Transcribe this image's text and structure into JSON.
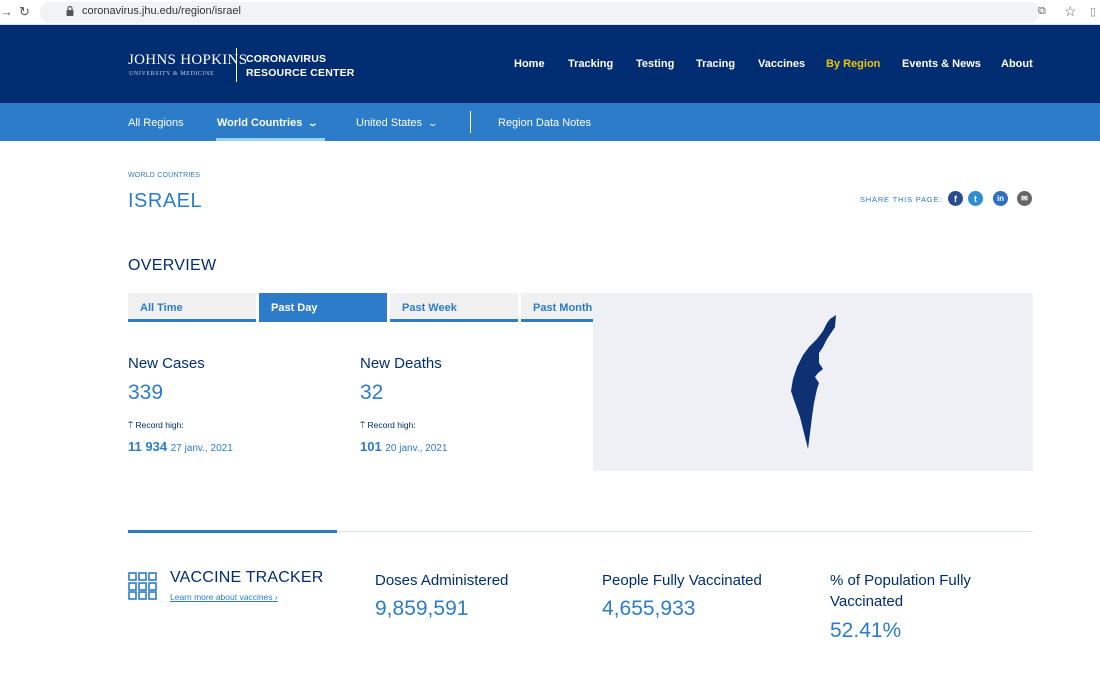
{
  "browser": {
    "url": "coronavirus.jhu.edu/region/israel",
    "icons": [
      "back-arrow-icon",
      "reload-icon",
      "lock-icon",
      "translate-icon",
      "star-icon"
    ]
  },
  "header": {
    "logo_main": "JOHNS HOPKINS",
    "logo_sub": "UNIVERSITY & MEDICINE",
    "logo_crc_line1": "CORONAVIRUS",
    "logo_crc_line2": "RESOURCE CENTER",
    "nav": [
      "Home",
      "Tracking",
      "Testing",
      "Tracing",
      "Vaccines",
      "By Region",
      "Events & News",
      "About"
    ],
    "active_nav": "By Region"
  },
  "subnav": {
    "items": [
      "All Regions",
      "World Countries",
      "United States",
      "Region Data Notes"
    ],
    "active": "World Countries"
  },
  "page": {
    "breadcrumb": "WORLD COUNTRIES",
    "title": "ISRAEL",
    "share_label": "SHARE THIS PAGE:",
    "share_icons": [
      "facebook-icon",
      "twitter-icon",
      "linkedin-icon",
      "email-icon"
    ]
  },
  "overview": {
    "title": "OVERVIEW",
    "tabs": [
      "All Time",
      "Past Day",
      "Past Week",
      "Past Month"
    ],
    "active_tab": "Past Day",
    "new_cases": {
      "label": "New Cases",
      "value": "339",
      "record_label": "Record high:",
      "record_value": "11 934",
      "record_date": "27 janv., 2021"
    },
    "new_deaths": {
      "label": "New Deaths",
      "value": "32",
      "record_label": "Record high:",
      "record_value": "101",
      "record_date": "20 janv., 2021"
    }
  },
  "vaccine": {
    "title": "VACCINE TRACKER",
    "link": "Learn more about vaccines ›",
    "doses_label": "Doses Administered",
    "doses_value": "9,859,591",
    "fully_label": "People Fully Vaccinated",
    "fully_value": "4,655,933",
    "pct_label_line1": "% of Population Fully",
    "pct_label_line2": "Vaccinated",
    "pct_value": "52.41%"
  },
  "colors": {
    "navy": "#002d72",
    "blue": "#2c7cc9",
    "gold": "#f1c400",
    "map_bg": "#eef0f6"
  }
}
